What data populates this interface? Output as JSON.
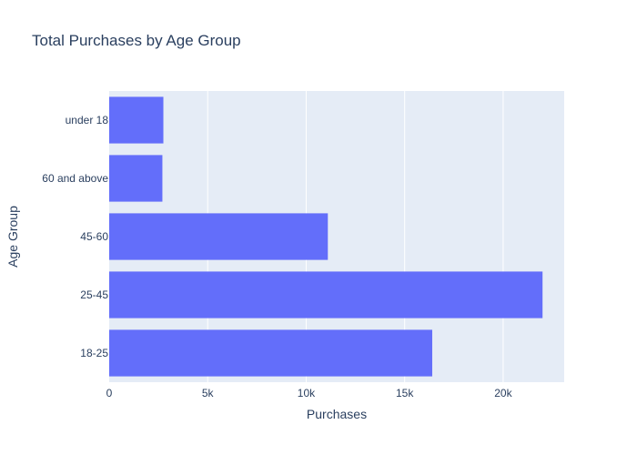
{
  "chart_data": {
    "type": "bar",
    "orientation": "horizontal",
    "title": "Total Purchases by Age Group",
    "xlabel": "Purchases",
    "ylabel": "Age Group",
    "categories": [
      "18-25",
      "25-45",
      "45-60",
      "60 and above",
      "under 18"
    ],
    "values": [
      16400,
      22000,
      11100,
      2700,
      2750
    ],
    "xlim": [
      0,
      23100
    ],
    "xticks": [
      0,
      5000,
      10000,
      15000,
      20000
    ],
    "xtick_labels": [
      "0",
      "5k",
      "10k",
      "15k",
      "20k"
    ],
    "grid": true,
    "legend": "none"
  },
  "colors": {
    "bar": "#636efa",
    "plot_background": "#e5ecf6",
    "gridline": "#ffffff",
    "text": "#2a3f5f"
  }
}
